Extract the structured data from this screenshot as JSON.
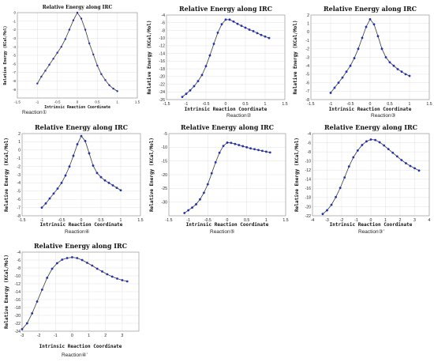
{
  "colors": {
    "line": "#3a3a3a",
    "marker": "#1f2fb8",
    "grid": "#e2e2e2",
    "frame": "#8c8c8c"
  },
  "chart_data": [
    {
      "type": "line",
      "title": "Relative Energy along IRC",
      "xlabel": "Intrinsic Reaction Coordinate",
      "ylabel": "Relative Energy (KCal/Mol)",
      "caption": "Reaction①",
      "xlim": [
        -1.5,
        1.5
      ],
      "ylim": [
        -10,
        0
      ],
      "xticks": [
        -1.5,
        -1,
        -0.5,
        0,
        0.5,
        1,
        1.5
      ],
      "xtick_labels": [
        "-1.5",
        "-1",
        "-0.5",
        "0",
        "0.5",
        "1",
        "1.5"
      ],
      "yticks": [
        -10,
        -9,
        -8,
        -7,
        -6,
        -5,
        -4,
        -3,
        -2,
        -1,
        0
      ],
      "ytick_labels": [
        "",
        "-9",
        "-8",
        "-7",
        "-6",
        "-5",
        "-4",
        "-3",
        "-2",
        "-1",
        "0"
      ],
      "grid": true,
      "x": [
        -1.0,
        -0.9,
        -0.8,
        -0.7,
        -0.6,
        -0.5,
        -0.4,
        -0.3,
        -0.2,
        -0.1,
        0.0,
        0.1,
        0.2,
        0.3,
        0.4,
        0.5,
        0.6,
        0.7,
        0.8,
        0.9,
        1.0
      ],
      "y": [
        -8.3,
        -7.5,
        -6.8,
        -6.1,
        -5.4,
        -4.7,
        -4.0,
        -3.1,
        -2.0,
        -0.9,
        0.0,
        -0.7,
        -2.0,
        -3.6,
        -4.9,
        -6.2,
        -7.2,
        -7.9,
        -8.5,
        -8.9,
        -9.2
      ]
    },
    {
      "type": "line",
      "title": "Relative Energy along IRC",
      "xlabel": "Intrinsic Reaction Coordinate",
      "ylabel": "Relative Energy (KCal/Mol)",
      "caption": "Reaction②",
      "xlim": [
        -1.5,
        1.5
      ],
      "ylim": [
        -26,
        -4
      ],
      "xticks": [
        -1.5,
        -1,
        -0.5,
        0,
        0.5,
        1,
        1.5
      ],
      "xtick_labels": [
        "-1.5",
        "-1",
        "-0.5",
        "0",
        "0.5",
        "1",
        "1.5"
      ],
      "yticks": [
        -26,
        -24,
        -22,
        -20,
        -18,
        -16,
        -14,
        -12,
        -10,
        -8,
        -6,
        -4
      ],
      "ytick_labels": [
        "-26",
        "-24",
        "-22",
        "-20",
        "-18",
        "-16",
        "-14",
        "-12",
        "-10",
        "-8",
        "-6",
        "-4"
      ],
      "grid": true,
      "x": [
        -1.1,
        -1.0,
        -0.9,
        -0.8,
        -0.7,
        -0.6,
        -0.5,
        -0.4,
        -0.3,
        -0.2,
        -0.1,
        0.0,
        0.1,
        0.2,
        0.3,
        0.4,
        0.5,
        0.6,
        0.7,
        0.8,
        0.9,
        1.0,
        1.1
      ],
      "y": [
        -25.3,
        -24.5,
        -23.6,
        -22.5,
        -21.2,
        -19.6,
        -17.3,
        -14.5,
        -11.5,
        -8.6,
        -6.4,
        -5.2,
        -5.2,
        -5.7,
        -6.3,
        -6.8,
        -7.3,
        -7.8,
        -8.2,
        -8.7,
        -9.2,
        -9.6,
        -10.0
      ]
    },
    {
      "type": "line",
      "title": "Relative Energy along IRC",
      "xlabel": "Intrinsic Reaction Coordinate",
      "ylabel": "Relative Energy (KCal/Mol)",
      "caption": "Reaction③",
      "xlim": [
        -1.5,
        1.5
      ],
      "ylim": [
        -8,
        2
      ],
      "xticks": [
        -1.5,
        -1,
        -0.5,
        0,
        0.5,
        1,
        1.5
      ],
      "xtick_labels": [
        "-1.5",
        "-1",
        "-0.5",
        "0",
        "0.5",
        "1",
        "1.5"
      ],
      "yticks": [
        -8,
        -7,
        -6,
        -5,
        -4,
        -3,
        -2,
        -1,
        0,
        1,
        2
      ],
      "ytick_labels": [
        "-8",
        "-7",
        "-6",
        "-5",
        "-4",
        "-3",
        "-2",
        "-1",
        "0",
        "1",
        "2"
      ],
      "grid": true,
      "x": [
        -1.0,
        -0.9,
        -0.8,
        -0.7,
        -0.6,
        -0.5,
        -0.4,
        -0.3,
        -0.2,
        -0.1,
        0.0,
        0.1,
        0.2,
        0.3,
        0.4,
        0.5,
        0.6,
        0.7,
        0.8,
        0.9,
        1.0
      ],
      "y": [
        -7.2,
        -6.6,
        -6.0,
        -5.4,
        -4.7,
        -4.0,
        -3.1,
        -2.0,
        -0.7,
        0.6,
        1.5,
        0.9,
        -0.5,
        -2.0,
        -3.0,
        -3.6,
        -4.0,
        -4.4,
        -4.7,
        -5.0,
        -5.2
      ]
    },
    {
      "type": "line",
      "title": "Relative Energy along IRC",
      "xlabel": "Intrinsic Reaction Coordinate",
      "ylabel": "Relative Energy (KCal/Mol)",
      "caption": "Reaction④",
      "xlim": [
        -1.5,
        1.5
      ],
      "ylim": [
        -8,
        2
      ],
      "xticks": [
        -1.5,
        -1,
        -0.5,
        0,
        0.5,
        1,
        1.5
      ],
      "xtick_labels": [
        "-1.5",
        "-1",
        "-0.5",
        "0",
        "0.5",
        "1",
        "1.5"
      ],
      "yticks": [
        -8,
        -7,
        -6,
        -5,
        -4,
        -3,
        -2,
        -1,
        0,
        1,
        2
      ],
      "ytick_labels": [
        "-8",
        "-7",
        "-6",
        "-5",
        "-4",
        "-3",
        "-2",
        "-1",
        "0",
        "1",
        "2"
      ],
      "grid": true,
      "x": [
        -1.0,
        -0.9,
        -0.8,
        -0.7,
        -0.6,
        -0.5,
        -0.4,
        -0.3,
        -0.2,
        -0.1,
        0.0,
        0.1,
        0.2,
        0.3,
        0.4,
        0.5,
        0.6,
        0.7,
        0.8,
        0.9,
        1.0
      ],
      "y": [
        -7.0,
        -6.5,
        -5.9,
        -5.3,
        -4.7,
        -4.0,
        -3.1,
        -2.0,
        -0.7,
        0.7,
        1.7,
        1.1,
        -0.4,
        -1.9,
        -2.8,
        -3.3,
        -3.7,
        -4.0,
        -4.3,
        -4.6,
        -4.9
      ]
    },
    {
      "type": "line",
      "title": "Relative Energy along IRC",
      "xlabel": "Intrinsic Reaction Coordinate",
      "ylabel": "Relative Energy (KCal/Mol)",
      "caption": "Reaction⑤",
      "xlim": [
        -1.5,
        1.5
      ],
      "ylim": [
        -35,
        -5
      ],
      "xticks": [
        -1.5,
        -1,
        -0.5,
        0,
        0.5,
        1,
        1.5
      ],
      "xtick_labels": [
        "-1.5",
        "-1",
        "-0.5",
        "0",
        "0.5",
        "1",
        "1.5"
      ],
      "yticks": [
        -35,
        -30,
        -25,
        -20,
        -15,
        -10,
        -5
      ],
      "ytick_labels": [
        "",
        "-30",
        "-25",
        "-20",
        "-15",
        "-10",
        "-5"
      ],
      "grid": true,
      "x": [
        -1.1,
        -1.0,
        -0.9,
        -0.8,
        -0.7,
        -0.6,
        -0.5,
        -0.4,
        -0.3,
        -0.2,
        -0.1,
        0.0,
        0.1,
        0.2,
        0.3,
        0.4,
        0.5,
        0.6,
        0.7,
        0.8,
        0.9,
        1.0,
        1.1
      ],
      "y": [
        -34.0,
        -33.0,
        -32.0,
        -30.8,
        -29.0,
        -26.6,
        -23.5,
        -19.5,
        -15.5,
        -12.0,
        -9.5,
        -8.3,
        -8.4,
        -8.8,
        -9.2,
        -9.6,
        -10.0,
        -10.4,
        -10.7,
        -11.0,
        -11.3,
        -11.6,
        -11.9
      ]
    },
    {
      "type": "line",
      "title": "Relative Energy along IRC",
      "xlabel": "Intrinsic Reaction Coordinate",
      "ylabel": "Relative Energy (KCal/Mol)",
      "caption": "Reaction③’",
      "xlim": [
        -4,
        4
      ],
      "ylim": [
        -22,
        -4
      ],
      "xticks": [
        -4,
        -3,
        -2,
        -1,
        0,
        1,
        2,
        3,
        4
      ],
      "xtick_labels": [
        "-4",
        "-3",
        "-2",
        "-1",
        "0",
        "1",
        "2",
        "3",
        "4"
      ],
      "yticks": [
        -22,
        -20,
        -18,
        -16,
        -14,
        -12,
        -10,
        -8,
        -6,
        -4
      ],
      "ytick_labels": [
        "-22",
        "-20",
        "-18",
        "-16",
        "-14",
        "-12",
        "-10",
        "-8",
        "-6",
        "-4"
      ],
      "grid": true,
      "x": [
        -3.3,
        -3.0,
        -2.7,
        -2.4,
        -2.1,
        -1.8,
        -1.5,
        -1.2,
        -0.9,
        -0.6,
        -0.3,
        0.0,
        0.3,
        0.6,
        0.9,
        1.2,
        1.5,
        1.8,
        2.1,
        2.4,
        2.7,
        3.0,
        3.3
      ],
      "y": [
        -21.6,
        -20.8,
        -19.6,
        -17.9,
        -15.9,
        -13.6,
        -11.2,
        -9.2,
        -7.7,
        -6.5,
        -5.7,
        -5.3,
        -5.4,
        -5.9,
        -6.6,
        -7.4,
        -8.2,
        -9.0,
        -9.8,
        -10.5,
        -11.1,
        -11.6,
        -12.1
      ]
    },
    {
      "type": "line",
      "title": "Relative Energy along IRC",
      "xlabel": "Intrinsic Reaction Coordinate",
      "ylabel": "Relative Energy (KCal/Mol)",
      "caption": "Reaction④’",
      "xlim": [
        -3,
        4
      ],
      "ylim": [
        -24,
        -4
      ],
      "xticks": [
        -3,
        -2,
        -1,
        0,
        1,
        2,
        3
      ],
      "xtick_labels": [
        "-3",
        "-2",
        "-1",
        "0",
        "1",
        "2",
        "3"
      ],
      "yticks": [
        -24,
        -22,
        -20,
        -18,
        -16,
        -14,
        -12,
        -10,
        -8,
        -6,
        -4
      ],
      "ytick_labels": [
        "-24",
        "-22",
        "-20",
        "-18",
        "-16",
        "-14",
        "-12",
        "-10",
        "-8",
        "-6",
        "-4"
      ],
      "grid": true,
      "x": [
        -3.0,
        -2.7,
        -2.4,
        -2.1,
        -1.8,
        -1.5,
        -1.2,
        -0.9,
        -0.6,
        -0.3,
        0.0,
        0.3,
        0.6,
        0.9,
        1.2,
        1.5,
        1.8,
        2.1,
        2.4,
        2.7,
        3.0,
        3.3
      ],
      "y": [
        -23.5,
        -22.0,
        -19.5,
        -16.5,
        -13.5,
        -10.5,
        -8.2,
        -6.8,
        -5.9,
        -5.5,
        -5.3,
        -5.5,
        -6.0,
        -6.7,
        -7.4,
        -8.2,
        -8.9,
        -9.6,
        -10.2,
        -10.7,
        -11.1,
        -11.4
      ]
    }
  ]
}
